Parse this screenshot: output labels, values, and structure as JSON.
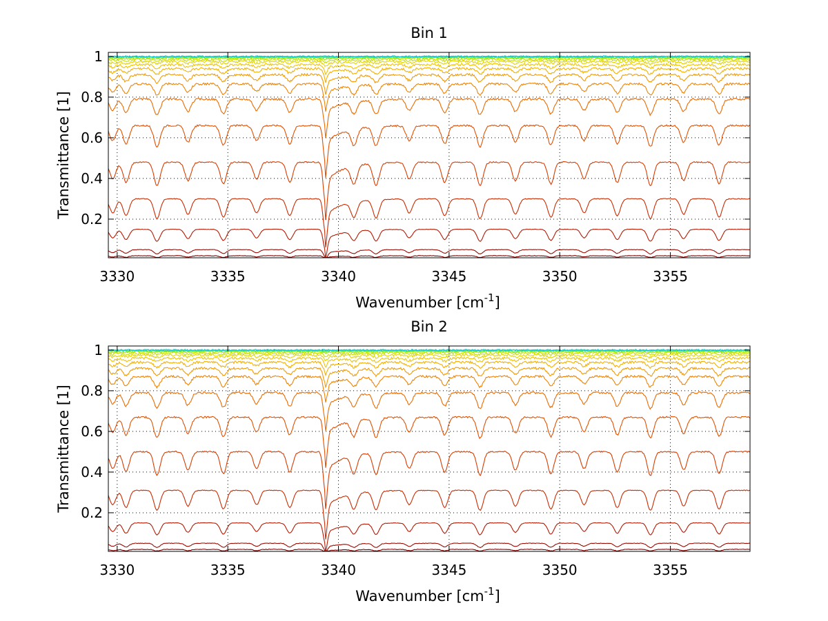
{
  "chart_data": [
    {
      "type": "line",
      "title": "Bin 1",
      "xlabel": "Wavenumber [cm",
      "xlabel_sup": "-1",
      "xlabel_end": "]",
      "ylabel": "Transmittance [1]",
      "xlim": [
        3329.6,
        3358.6
      ],
      "ylim": [
        0.01,
        1.02
      ],
      "xticks": [
        3330,
        3335,
        3340,
        3345,
        3350,
        3355
      ],
      "yticks": [
        0.2,
        0.4,
        0.6,
        0.8,
        1
      ],
      "xtick_labels": [
        "3330",
        "3335",
        "3340",
        "3345",
        "3350",
        "3355"
      ],
      "ytick_labels": [
        "0.2",
        "0.4",
        "0.6",
        "0.8",
        "1"
      ],
      "grid": true,
      "series_baselines": [
        0.02,
        0.05,
        0.15,
        0.3,
        0.48,
        0.66,
        0.79,
        0.865,
        0.91,
        0.94,
        0.96,
        0.975,
        0.985,
        0.992,
        0.996,
        0.998,
        0.999,
        1.0
      ],
      "series_colors": [
        "#800000",
        "#9a0a00",
        "#b41800",
        "#c82a00",
        "#d63c00",
        "#e05000",
        "#e86a00",
        "#ee8200",
        "#f29a00",
        "#f4b000",
        "#f0c400",
        "#e4d400",
        "#c8e000",
        "#a0e800",
        "#70ec20",
        "#40e878",
        "#20d8b8",
        "#10c8d8"
      ],
      "strong_line_x": 3339.4,
      "absorption_lines_x": [
        3329.8,
        3330.4,
        3331.8,
        3333.2,
        3334.8,
        3336.3,
        3337.8,
        3339.4,
        3340.7,
        3341.7,
        3343.2,
        3344.8,
        3346.4,
        3348.0,
        3349.6,
        3351.1,
        3352.6,
        3354.1,
        3355.6,
        3357.2
      ]
    },
    {
      "type": "line",
      "title": "Bin 2",
      "xlabel": "Wavenumber [cm",
      "xlabel_sup": "-1",
      "xlabel_end": "]",
      "ylabel": "Transmittance [1]",
      "xlim": [
        3329.6,
        3358.6
      ],
      "ylim": [
        0.01,
        1.02
      ],
      "xticks": [
        3330,
        3335,
        3340,
        3345,
        3350,
        3355
      ],
      "yticks": [
        0.2,
        0.4,
        0.6,
        0.8,
        1
      ],
      "xtick_labels": [
        "3330",
        "3335",
        "3340",
        "3345",
        "3350",
        "3355"
      ],
      "ytick_labels": [
        "0.2",
        "0.4",
        "0.6",
        "0.8",
        "1"
      ],
      "grid": true,
      "series_baselines": [
        0.02,
        0.05,
        0.15,
        0.31,
        0.5,
        0.67,
        0.79,
        0.87,
        0.91,
        0.94,
        0.96,
        0.975,
        0.985,
        0.992,
        0.996,
        0.998,
        0.999,
        1.0
      ],
      "series_colors": [
        "#800000",
        "#9a0a00",
        "#b41800",
        "#c82a00",
        "#d63c00",
        "#e05000",
        "#e86a00",
        "#ee8200",
        "#f29a00",
        "#f4b000",
        "#f0c400",
        "#e4d400",
        "#c8e000",
        "#a0e800",
        "#70ec20",
        "#40e878",
        "#20d8b8",
        "#10c8d8"
      ],
      "strong_line_x": 3339.4,
      "absorption_lines_x": [
        3329.8,
        3330.4,
        3331.8,
        3333.2,
        3334.8,
        3336.3,
        3337.8,
        3339.4,
        3340.7,
        3341.7,
        3343.2,
        3344.8,
        3346.4,
        3348.0,
        3349.6,
        3351.1,
        3352.6,
        3354.1,
        3355.6,
        3357.2
      ]
    }
  ]
}
